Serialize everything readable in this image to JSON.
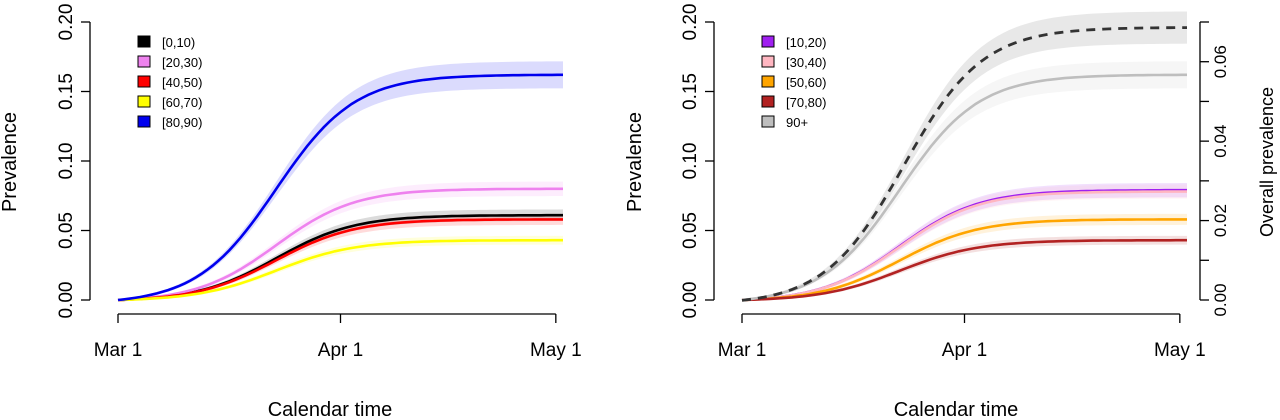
{
  "chart_data": [
    {
      "type": "line",
      "xlabel": "Calendar time",
      "ylabel": "Prevalence",
      "x_ticks": [
        "Mar 1",
        "Apr 1",
        "May 1"
      ],
      "y_ticks": [
        "0.00",
        "0.05",
        "0.10",
        "0.15",
        "0.20"
      ],
      "ylim": [
        0,
        0.2
      ],
      "legend_position": "top-left",
      "series": [
        {
          "name": "[0,10)",
          "color": "#000000",
          "final": 0.061
        },
        {
          "name": "[20,30)",
          "color": "#ee82ee",
          "final": 0.08
        },
        {
          "name": "[40,50)",
          "color": "#ff0000",
          "final": 0.058
        },
        {
          "name": "[60,70)",
          "color": "#ffff00",
          "final": 0.043
        },
        {
          "name": "[80,90)",
          "color": "#0000ee",
          "final": 0.162
        }
      ]
    },
    {
      "type": "line",
      "xlabel": "Calendar time",
      "ylabel": "Prevalence",
      "ylabel_right": "Overall prevalence",
      "x_ticks": [
        "Mar 1",
        "Apr 1",
        "May 1"
      ],
      "y_ticks": [
        "0.00",
        "0.05",
        "0.10",
        "0.15",
        "0.20"
      ],
      "y_right_ticks": [
        "0.00",
        "0.02",
        "0.04",
        "0.06"
      ],
      "ylim": [
        0,
        0.2
      ],
      "ylim_right": [
        0,
        0.07
      ],
      "legend_position": "top-left",
      "series": [
        {
          "name": "[10,20)",
          "color": "#a020f0",
          "final": 0.079
        },
        {
          "name": "[30,40)",
          "color": "#ffb6c1",
          "final": 0.078
        },
        {
          "name": "[50,60)",
          "color": "#ffa500",
          "final": 0.058
        },
        {
          "name": "[70,80)",
          "color": "#b22222",
          "final": 0.043
        },
        {
          "name": "90+",
          "color": "#bebebe",
          "final": 0.162
        },
        {
          "name": "",
          "color": "#333333",
          "dashed": true,
          "final": 0.196
        }
      ]
    }
  ]
}
